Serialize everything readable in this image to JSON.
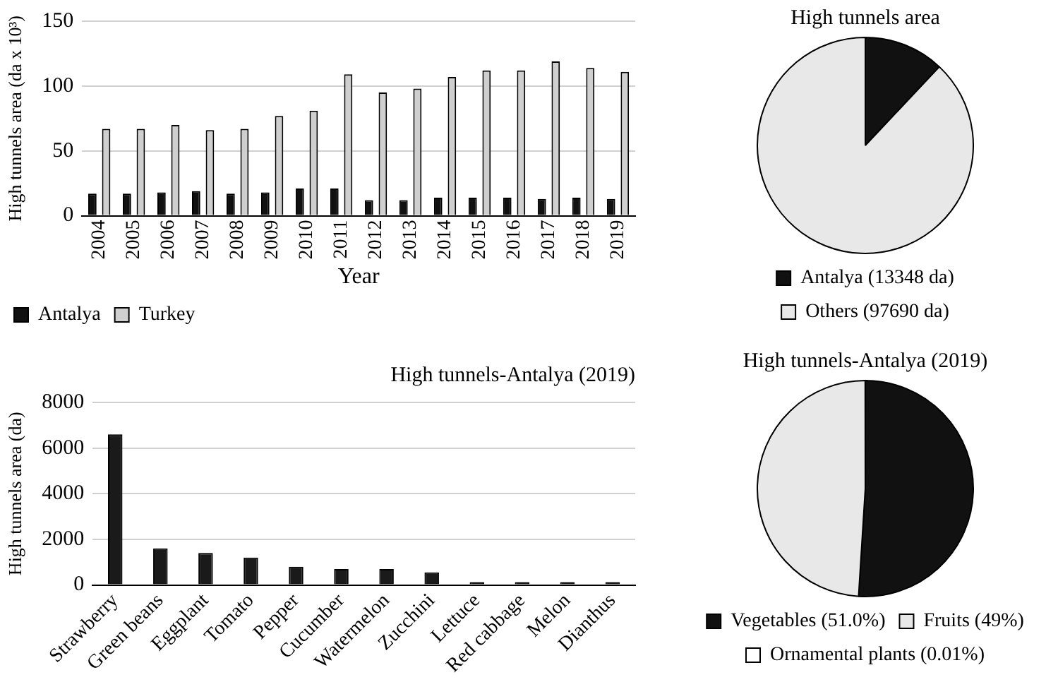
{
  "chart_data": [
    {
      "type": "bar",
      "xlabel": "Year",
      "ylabel": "High tunnels area (da x 10³)",
      "categories": [
        "2004",
        "2005",
        "2006",
        "2007",
        "2008",
        "2009",
        "2010",
        "2011",
        "2012",
        "2013",
        "2014",
        "2015",
        "2016",
        "2017",
        "2018",
        "2019"
      ],
      "series": [
        {
          "name": "Antalya",
          "color": "#111111",
          "values": [
            17,
            17,
            18,
            19,
            17,
            18,
            21,
            21,
            12,
            12,
            14,
            14,
            14,
            13,
            14,
            13
          ]
        },
        {
          "name": "Turkey",
          "color": "#cfcfcf",
          "values": [
            67,
            67,
            70,
            66,
            67,
            77,
            81,
            109,
            95,
            98,
            107,
            112,
            112,
            119,
            114,
            111
          ]
        }
      ],
      "ylim": [
        0,
        150
      ],
      "yticks": [
        0,
        50,
        100,
        150
      ],
      "grid": "y",
      "legend": "bottom left"
    },
    {
      "type": "pie",
      "title": "High tunnels area",
      "categories": [
        "Antalya (13348 da)",
        "Others (97690 da)"
      ],
      "values": [
        13348,
        97690
      ],
      "colors": [
        "#111111",
        "#e8e8e8"
      ],
      "legend": "bottom"
    },
    {
      "type": "bar",
      "title": "High tunnels-Antalya (2019)",
      "ylabel": "High tunnels area (da)",
      "categories": [
        "Strawberry",
        "Green beans",
        "Eggplant",
        "Tomato",
        "Pepper",
        "Cucumber",
        "Watermelon",
        "Zucchini",
        "Lettuce",
        "Red cabbage",
        "Melon",
        "Dianthus"
      ],
      "values": [
        6600,
        1600,
        1400,
        1200,
        800,
        700,
        700,
        550,
        50,
        50,
        40,
        40
      ],
      "color": "#1a1a1a",
      "ylim": [
        0,
        8000
      ],
      "yticks": [
        0,
        2000,
        4000,
        6000,
        8000
      ],
      "grid": "y"
    },
    {
      "type": "pie",
      "title": "High tunnels-Antalya (2019)",
      "categories": [
        "Vegetables (51.0%)",
        "Fruits (49%)",
        "Ornamental plants (0.01%)"
      ],
      "values": [
        51.0,
        49,
        0.01
      ],
      "colors": [
        "#111111",
        "#e8e8e8",
        "#ffffff"
      ],
      "legend": "bottom"
    }
  ]
}
